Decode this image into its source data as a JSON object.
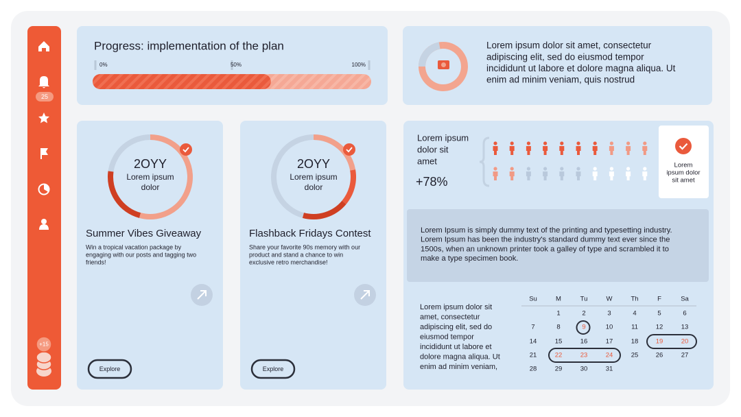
{
  "sidebar": {
    "badge": 25,
    "stack_badge": "+15"
  },
  "progress": {
    "title": "Progress: implementation of the plan",
    "ticks": [
      {
        "value": 0,
        "label": "0%"
      },
      {
        "value": 50,
        "label": "50%"
      },
      {
        "value": 100,
        "label": "100%"
      }
    ],
    "value": 64
  },
  "summary": {
    "lines": [
      "Lorem ipsum dolor sit amet, consectetur",
      "adipiscing elit, sed do eiusmod tempor",
      "incididunt ut labore et dolore magna aliqua. Ut",
      "enim ad minim veniam, quis nostrud"
    ]
  },
  "cards": [
    {
      "year": "2OYY",
      "ring_lines": [
        "Lorem ipsum",
        "dolor"
      ],
      "title": "Summer Vibes Giveaway",
      "description": [
        "Win a tropical vacation package by",
        "engaging with our posts and tagging two",
        "friends!"
      ],
      "button": "Explore"
    },
    {
      "year": "2OYY",
      "ring_lines": [
        "Lorem ipsum",
        "dolor"
      ],
      "title": "Flashback Fridays Contest",
      "description": [
        "Share your favorite 90s memory with our",
        "product and stand a chance to win",
        "exclusive retro merchandise!"
      ],
      "button": "Explore"
    }
  ],
  "stats": {
    "label_lines": [
      "Lorem ipsum",
      "dolor sit",
      "amet"
    ],
    "change": "+78%",
    "badge_lines": [
      "Lorem",
      "ipsum dolor",
      "sit amet"
    ]
  },
  "note": {
    "lines": [
      "Lorem Ipsum is simply dummy text of the printing and typesetting industry.",
      "Lorem Ipsum has been the industry's standard dummy text ever since the",
      "1500s, when an unknown printer took a galley of type and scrambled it to",
      "make a type specimen book."
    ]
  },
  "calendar": {
    "text_lines": [
      "Lorem ipsum dolor sit",
      "amet, consectetur",
      "adipiscing elit, sed do",
      "eiusmod tempor",
      "incididunt ut labore et",
      "dolore magna aliqua. Ut",
      "enim ad minim veniam,"
    ],
    "days": [
      "Su",
      "M",
      "Tu",
      "W",
      "Th",
      "F",
      "Sa"
    ],
    "weeks": [
      [
        null,
        1,
        2,
        3,
        4,
        5,
        6
      ],
      [
        7,
        8,
        9,
        10,
        11,
        12,
        13
      ],
      [
        14,
        15,
        16,
        17,
        18,
        19,
        20
      ],
      [
        21,
        22,
        23,
        24,
        25,
        26,
        27
      ],
      [
        28,
        29,
        30,
        31,
        null,
        null,
        null
      ]
    ]
  }
}
